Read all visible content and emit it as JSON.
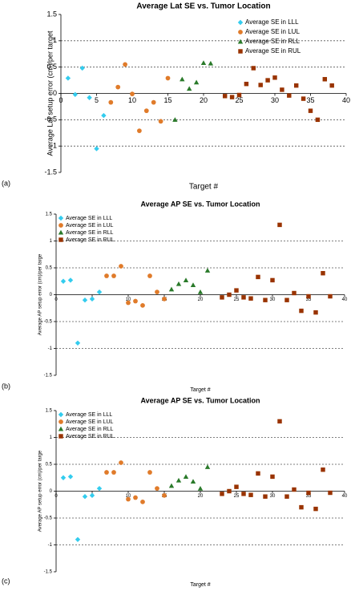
{
  "chart_data": [
    {
      "type": "scatter",
      "panel_label": "(a)",
      "title": "Average Lat SE vs. Tumor Location",
      "x_label": "Target #",
      "y_label": "Average Lat setup error (cm)/per target",
      "xlim": [
        0,
        40
      ],
      "xticks": [
        0,
        5,
        10,
        15,
        20,
        25,
        30,
        35,
        40
      ],
      "ylim": [
        -1.5,
        1.5
      ],
      "yticks": [
        -1.5,
        -1,
        -0.5,
        0,
        0.5,
        1,
        1.5
      ],
      "grid": true,
      "legend": "upper right",
      "series": [
        {
          "name": "Average SE in LLL",
          "color": "#33ccee",
          "marker": "diamond",
          "x": [
            1,
            2,
            3,
            4,
            5,
            6
          ],
          "values": [
            0.29,
            -0.02,
            0.48,
            -0.08,
            -1.05,
            -0.42
          ]
        },
        {
          "name": "Average SE in LUL",
          "color": "#e07b2a",
          "marker": "circle",
          "x": [
            7,
            8,
            9,
            10,
            11,
            12,
            13,
            14,
            15
          ],
          "values": [
            -0.17,
            0.12,
            0.55,
            -0.01,
            -0.71,
            -0.33,
            -0.17,
            -0.53,
            0.29
          ]
        },
        {
          "name": "Average SE in RLL",
          "color": "#2a7a2a",
          "marker": "triangle",
          "x": [
            16,
            17,
            18,
            19,
            20,
            21
          ],
          "values": [
            -0.5,
            0.27,
            0.09,
            0.21,
            0.58,
            0.57
          ]
        },
        {
          "name": "Average SE in RUL",
          "color": "#993300",
          "marker": "square",
          "x": [
            23,
            24,
            25,
            26,
            27,
            28,
            29,
            30,
            31,
            32,
            33,
            34,
            35,
            36,
            37,
            38
          ],
          "values": [
            -0.05,
            -0.07,
            -0.03,
            0.18,
            0.48,
            0.16,
            0.25,
            0.3,
            0.07,
            -0.04,
            0.15,
            -0.1,
            -0.33,
            -0.5,
            0.27,
            0.15
          ]
        }
      ]
    },
    {
      "type": "scatter",
      "panel_label": "(b)",
      "title": "Average AP SE vs. Tumor Location",
      "x_label": "Target #",
      "y_label": "Average AP setup error (cm)/per targe",
      "xlim": [
        0,
        40
      ],
      "xticks": [
        0,
        5,
        10,
        15,
        20,
        25,
        30,
        35,
        40
      ],
      "ylim": [
        -1.5,
        1.5
      ],
      "yticks": [
        -1.5,
        -1,
        -0.5,
        0,
        0.5,
        1,
        1.5
      ],
      "grid": true,
      "legend": "upper left",
      "series": [
        {
          "name": "Average SE in LLL",
          "color": "#33ccee",
          "marker": "diamond",
          "x": [
            1,
            2,
            3,
            4,
            5,
            6
          ],
          "values": [
            0.25,
            0.27,
            -0.9,
            -0.1,
            -0.08,
            0.05
          ]
        },
        {
          "name": "Average SE in LUL",
          "color": "#e07b2a",
          "marker": "circle",
          "x": [
            7,
            8,
            9,
            10,
            11,
            12,
            13,
            14,
            15
          ],
          "values": [
            0.35,
            0.35,
            0.53,
            -0.15,
            -0.12,
            -0.2,
            0.35,
            0.05,
            -0.08
          ]
        },
        {
          "name": "Average SE in RLL",
          "color": "#2a7a2a",
          "marker": "triangle",
          "x": [
            16,
            17,
            18,
            19,
            20,
            21
          ],
          "values": [
            0.1,
            0.2,
            0.27,
            0.18,
            0.05,
            0.45
          ]
        },
        {
          "name": "Average SE in RUL",
          "color": "#993300",
          "marker": "square",
          "x": [
            23,
            24,
            25,
            26,
            27,
            28,
            29,
            30,
            31,
            32,
            33,
            34,
            35,
            36,
            37,
            38
          ],
          "values": [
            -0.05,
            0.0,
            0.08,
            -0.05,
            -0.07,
            0.33,
            -0.1,
            0.27,
            1.3,
            -0.1,
            0.03,
            -0.3,
            -0.03,
            -0.33,
            0.4,
            -0.03
          ]
        }
      ]
    },
    {
      "type": "scatter",
      "panel_label": "(c)",
      "title": "Average AP SE vs. Tumor Location",
      "x_label": "Target #",
      "y_label": "Average AP setup error (cm)/per targe",
      "xlim": [
        0,
        40
      ],
      "xticks": [
        0,
        5,
        10,
        15,
        20,
        25,
        30,
        35,
        40
      ],
      "ylim": [
        -1.5,
        1.5
      ],
      "yticks": [
        -1.5,
        -1,
        -0.5,
        0,
        0.5,
        1,
        1.5
      ],
      "grid": true,
      "legend": "upper left",
      "series": [
        {
          "name": "Average SE in LLL",
          "color": "#33ccee",
          "marker": "diamond",
          "x": [
            1,
            2,
            3,
            4,
            5,
            6
          ],
          "values": [
            0.25,
            0.27,
            -0.9,
            -0.1,
            -0.08,
            0.05
          ]
        },
        {
          "name": "Average SE in LUL",
          "color": "#e07b2a",
          "marker": "circle",
          "x": [
            7,
            8,
            9,
            10,
            11,
            12,
            13,
            14,
            15
          ],
          "values": [
            0.35,
            0.35,
            0.53,
            -0.15,
            -0.12,
            -0.2,
            0.35,
            0.05,
            -0.08
          ]
        },
        {
          "name": "Average SE in RLL",
          "color": "#2a7a2a",
          "marker": "triangle",
          "x": [
            16,
            17,
            18,
            19,
            20,
            21
          ],
          "values": [
            0.1,
            0.2,
            0.27,
            0.18,
            0.05,
            0.45
          ]
        },
        {
          "name": "Average SE in RUL",
          "color": "#993300",
          "marker": "square",
          "x": [
            23,
            24,
            25,
            26,
            27,
            28,
            29,
            30,
            31,
            32,
            33,
            34,
            35,
            36,
            37,
            38
          ],
          "values": [
            -0.05,
            0.0,
            0.08,
            -0.05,
            -0.07,
            0.33,
            -0.1,
            0.27,
            1.3,
            -0.1,
            0.03,
            -0.3,
            -0.03,
            -0.33,
            0.4,
            -0.03
          ]
        }
      ]
    }
  ]
}
